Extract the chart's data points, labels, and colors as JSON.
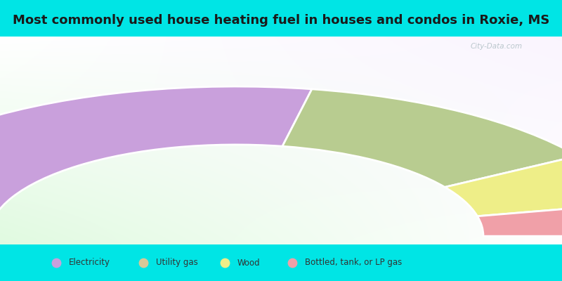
{
  "title": "Most commonly used house heating fuel in houses and condos in Roxie, MS",
  "title_fontsize": 13,
  "background_color": "#00e5e5",
  "segments": [
    {
      "label": "Electricity",
      "value": 56,
      "color": "#c9a0dc"
    },
    {
      "label": "Utility gas",
      "value": 26,
      "color": "#b8cc90"
    },
    {
      "label": "Wood",
      "value": 11,
      "color": "#eeee88"
    },
    {
      "label": "Bottled, tank, or LP gas",
      "value": 7,
      "color": "#f0a0a8"
    }
  ],
  "legend_colors": [
    "#c9a0dc",
    "#d8c898",
    "#eeee88",
    "#f0a0a8"
  ],
  "legend_labels": [
    "Electricity",
    "Utility gas",
    "Wood",
    "Bottled, tank, or LP gas"
  ]
}
